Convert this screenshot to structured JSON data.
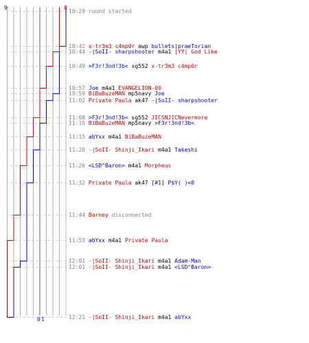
{
  "colors": {
    "blue": "#0000cc",
    "red": "#cc0000",
    "gray": "#808080",
    "grid": "#b0b0b0",
    "dash": "#c8c8c8",
    "black": "#000000"
  },
  "scores": {
    "blue_start": "9",
    "red_start": "8",
    "blue_end": "0",
    "red_end": "1"
  },
  "events": [
    {
      "time": "10:29",
      "parts": [
        {
          "text": "round started",
          "color": "gray"
        }
      ]
    },
    {
      "time": "10:42",
      "parts": [
        {
          "text": "x-tr3m3 c4mp0r",
          "color": "red"
        },
        {
          "text": " awp ",
          "color": "black"
        },
        {
          "text": "bullets|praeTorian",
          "color": "blue"
        }
      ]
    },
    {
      "time": "10:44",
      "parts": [
        {
          "text": "-|SoII- sharpshooter",
          "color": "blue"
        },
        {
          "text": " m4a1 ",
          "color": "black"
        },
        {
          "text": "|YY| God Like",
          "color": "red"
        }
      ]
    },
    {
      "time": "10:49",
      "parts": [
        {
          "text": ">F3r!3nd!3b<",
          "color": "blue"
        },
        {
          "text": " sg552 ",
          "color": "black"
        },
        {
          "text": "x-tr3m3 c4mp0r",
          "color": "red"
        }
      ]
    },
    {
      "time": "10:57",
      "parts": [
        {
          "text": "Joe",
          "color": "blue"
        },
        {
          "text": " m4a1 ",
          "color": "black"
        },
        {
          "text": "EVANGELION-00",
          "color": "red"
        }
      ]
    },
    {
      "time": "10:59",
      "parts": [
        {
          "text": "BiBaBuzeMAN",
          "color": "red"
        },
        {
          "text": " mp5navy ",
          "color": "black"
        },
        {
          "text": "Joe",
          "color": "blue"
        }
      ]
    },
    {
      "time": "11:02",
      "parts": [
        {
          "text": "Private Paula",
          "color": "red"
        },
        {
          "text": " ak47 ",
          "color": "black"
        },
        {
          "text": "-|SoII- sharpshooter",
          "color": "blue"
        }
      ]
    },
    {
      "time": "11:08",
      "parts": [
        {
          "text": ">F3r!3nd!3b<",
          "color": "blue"
        },
        {
          "text": " sg552 ",
          "color": "black"
        },
        {
          "text": "JICSNJICNevermore",
          "color": "red"
        }
      ]
    },
    {
      "time": "11:10",
      "parts": [
        {
          "text": "BiBaBuzeMAN",
          "color": "red"
        },
        {
          "text": " mp5navy ",
          "color": "black"
        },
        {
          "text": ">F3r!3nd!3b<",
          "color": "blue"
        }
      ]
    },
    {
      "time": "11:15",
      "parts": [
        {
          "text": "abYxx",
          "color": "blue"
        },
        {
          "text": " m4a1 ",
          "color": "black"
        },
        {
          "text": "BiBaBuzeMAN",
          "color": "red"
        }
      ]
    },
    {
      "time": "11:20",
      "parts": [
        {
          "text": "-|SoII- Shinji_Ikari",
          "color": "red"
        },
        {
          "text": " m4a1 ",
          "color": "black"
        },
        {
          "text": "Takeshi",
          "color": "blue"
        }
      ]
    },
    {
      "time": "11:26",
      "parts": [
        {
          "text": "<LSD^Baron>",
          "color": "blue"
        },
        {
          "text": " m4a1 ",
          "color": "black"
        },
        {
          "text": "Morpheus",
          "color": "red"
        }
      ]
    },
    {
      "time": "11:32",
      "parts": [
        {
          "text": "Private Paula",
          "color": "red"
        },
        {
          "text": " ak47 ",
          "color": "black"
        },
        {
          "text": "[#1] P$Y( )<0",
          "color": "blue"
        }
      ]
    },
    {
      "time": "11:44",
      "parts": [
        {
          "text": "Barney",
          "color": "red"
        },
        {
          "text": " disconnected",
          "color": "gray"
        }
      ]
    },
    {
      "time": "11:53",
      "parts": [
        {
          "text": "abYxx",
          "color": "blue"
        },
        {
          "text": " m4a1 ",
          "color": "black"
        },
        {
          "text": "Private Paula",
          "color": "red"
        }
      ]
    },
    {
      "time": "12:01",
      "parts": [
        {
          "text": "-|SoII- Shinji_Ikari",
          "color": "red"
        },
        {
          "text": " m4a1 ",
          "color": "black"
        },
        {
          "text": "Adam-Man",
          "color": "blue"
        }
      ]
    },
    {
      "time": "12:01",
      "parts": [
        {
          "text": "-|SoII- Shinji_Ikari",
          "color": "red"
        },
        {
          "text": " m4a1 ",
          "color": "black"
        },
        {
          "text": "<LSD^Baron>",
          "color": "blue"
        }
      ]
    },
    {
      "time": "12:21",
      "parts": [
        {
          "text": "-|SoII- Shinji_Ikari",
          "color": "red"
        },
        {
          "text": " m4a1 ",
          "color": "black"
        },
        {
          "text": "abYxx",
          "color": "blue"
        }
      ]
    }
  ]
}
